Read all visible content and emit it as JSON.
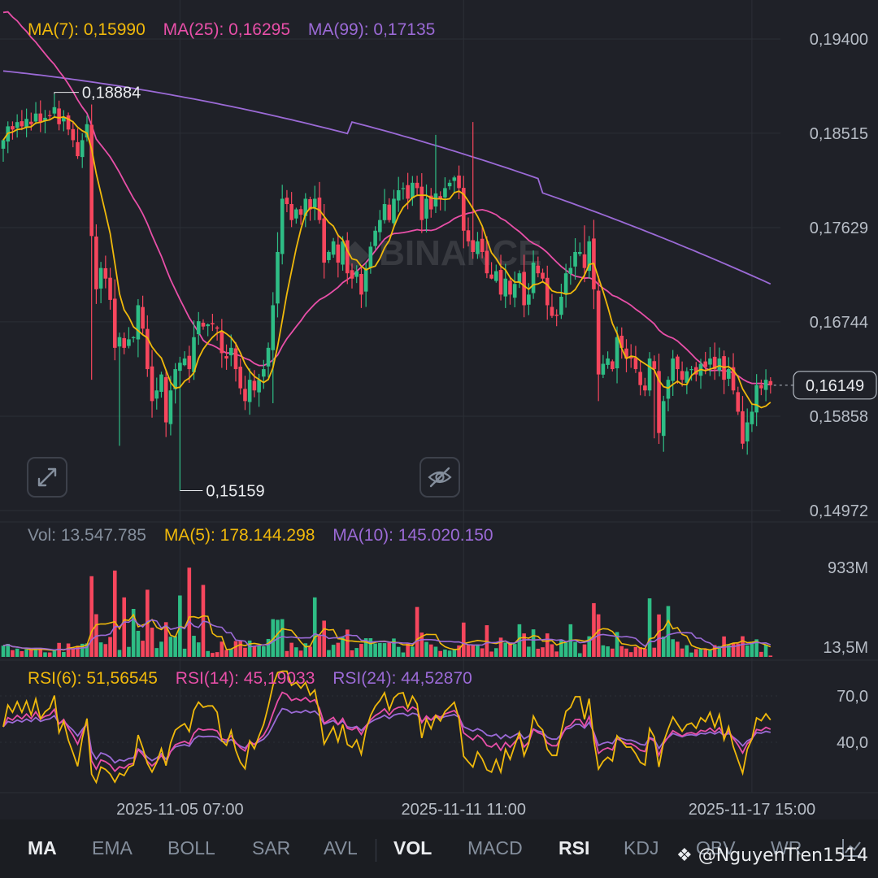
{
  "price_legend": {
    "ma7": "MA(7): 0,15990",
    "ma25": "MA(25): 0,16295",
    "ma99": "MA(99): 0,17135"
  },
  "volume_legend": {
    "vol": "Vol: 13.547.785",
    "ma5": "MA(5): 178.144.298",
    "ma10": "MA(10): 145.020.150"
  },
  "rsi_legend": {
    "rsi6": "RSI(6): 51,56545",
    "rsi14": "RSI(14): 45,19033",
    "rsi24": "RSI(24): 44,52870"
  },
  "annotations": {
    "high": "0,18884",
    "low": "0,15159",
    "current_price": "0,16149"
  },
  "toolbar": {
    "items": [
      "MA",
      "EMA",
      "BOLL",
      "SAR",
      "AVL",
      "VOL",
      "MACD",
      "RSI",
      "KDJ",
      "OBV",
      "WR"
    ],
    "active": [
      "MA",
      "VOL",
      "RSI"
    ]
  },
  "watermark": "@NguyenTien1514",
  "colors": {
    "background": "#1f2128",
    "up": "#2ebd85",
    "down": "#f6465d",
    "ma7": "#f0b90b",
    "ma25": "#e84fa8",
    "ma99": "#9b6ad6",
    "grid": "#2b2f36",
    "axis_text": "#b7bdc6"
  },
  "chart_data": [
    {
      "type": "candlestick",
      "name": "price",
      "y_ticks": [
        "0,19400",
        "0,18515",
        "0,17629",
        "0,16744",
        "0,15858",
        "0,14972"
      ],
      "y_tick_values": [
        0.194,
        0.18515,
        0.17629,
        0.16744,
        0.15858,
        0.14972
      ],
      "ylim": [
        0.1497,
        0.1953
      ],
      "x_ticks": [
        "2025-11-05 07:00",
        "2025-11-11 11:00",
        "2025-11-17 15:00"
      ],
      "x_tick_index": [
        38,
        99,
        161
      ],
      "high": 0.18884,
      "low": 0.15159,
      "last": 0.16149,
      "ma7_last": 0.1599,
      "ma25_last": 0.16295,
      "ma99_last": 0.17135,
      "guide": [
        0.1845,
        0.1858,
        0.1855,
        0.1862,
        0.1858,
        0.1865,
        0.186,
        0.187,
        0.1862,
        0.1866,
        0.1868,
        0.1876,
        0.186,
        0.1866,
        0.1855,
        0.1845,
        0.183,
        0.1845,
        0.186,
        0.1755,
        0.1705,
        0.1725,
        0.1715,
        0.1695,
        0.165,
        0.166,
        0.165,
        0.1658,
        0.166,
        0.169,
        0.1668,
        0.163,
        0.16,
        0.161,
        0.1625,
        0.158,
        0.161,
        0.163,
        0.1636,
        0.164,
        0.163,
        0.166,
        0.1675,
        0.167,
        0.1672,
        0.1672,
        0.1668,
        0.1645,
        0.164,
        0.165,
        0.163,
        0.1612,
        0.16,
        0.162,
        0.161,
        0.162,
        0.163,
        0.165,
        0.169,
        0.174,
        0.179,
        0.1785,
        0.177,
        0.178,
        0.1775,
        0.179,
        0.178,
        0.179,
        0.177,
        0.173,
        0.174,
        0.175,
        0.173,
        0.175,
        0.172,
        0.1715,
        0.1722,
        0.17,
        0.1725,
        0.1745,
        0.176,
        0.177,
        0.1785,
        0.177,
        0.179,
        0.1798,
        0.18,
        0.179,
        0.1805,
        0.18,
        0.177,
        0.179,
        0.178,
        0.1795,
        0.179,
        0.18,
        0.1805,
        0.181,
        0.18,
        0.176,
        0.175,
        0.174,
        0.175,
        0.174,
        0.172,
        0.1715,
        0.1722,
        0.17,
        0.1715,
        0.17,
        0.171,
        0.172,
        0.169,
        0.17,
        0.173,
        0.172,
        0.1715,
        0.169,
        0.168,
        0.168,
        0.1698,
        0.172,
        0.1725,
        0.174,
        0.174,
        0.1725,
        0.175,
        0.1705,
        0.1625,
        0.1635,
        0.164,
        0.163,
        0.166,
        0.165,
        0.164,
        0.164,
        0.163,
        0.1615,
        0.161,
        0.164,
        0.163,
        0.157,
        0.16,
        0.162,
        0.164,
        0.163,
        0.162,
        0.1628,
        0.163,
        0.1625,
        0.1635,
        0.1632,
        0.164,
        0.163,
        0.164,
        0.162,
        0.163,
        0.161,
        0.159,
        0.156,
        0.158,
        0.159,
        0.1615,
        0.1612,
        0.162,
        0.1615
      ],
      "volume": {
        "y_ticks": [
          "933M",
          "13,5M"
        ],
        "ylim": [
          0,
          1000
        ],
        "units": "M",
        "last": 13.547785,
        "ma5_last": 178.144298,
        "ma10_last": 145.02015
      },
      "rsi": {
        "y_ticks": [
          "70,0",
          "40,0"
        ],
        "y_tick_values": [
          70,
          40
        ],
        "ylim": [
          6,
          86
        ],
        "rsi6_last": 51.56545,
        "rsi14_last": 45.19033,
        "rsi24_last": 44.5287
      }
    }
  ]
}
